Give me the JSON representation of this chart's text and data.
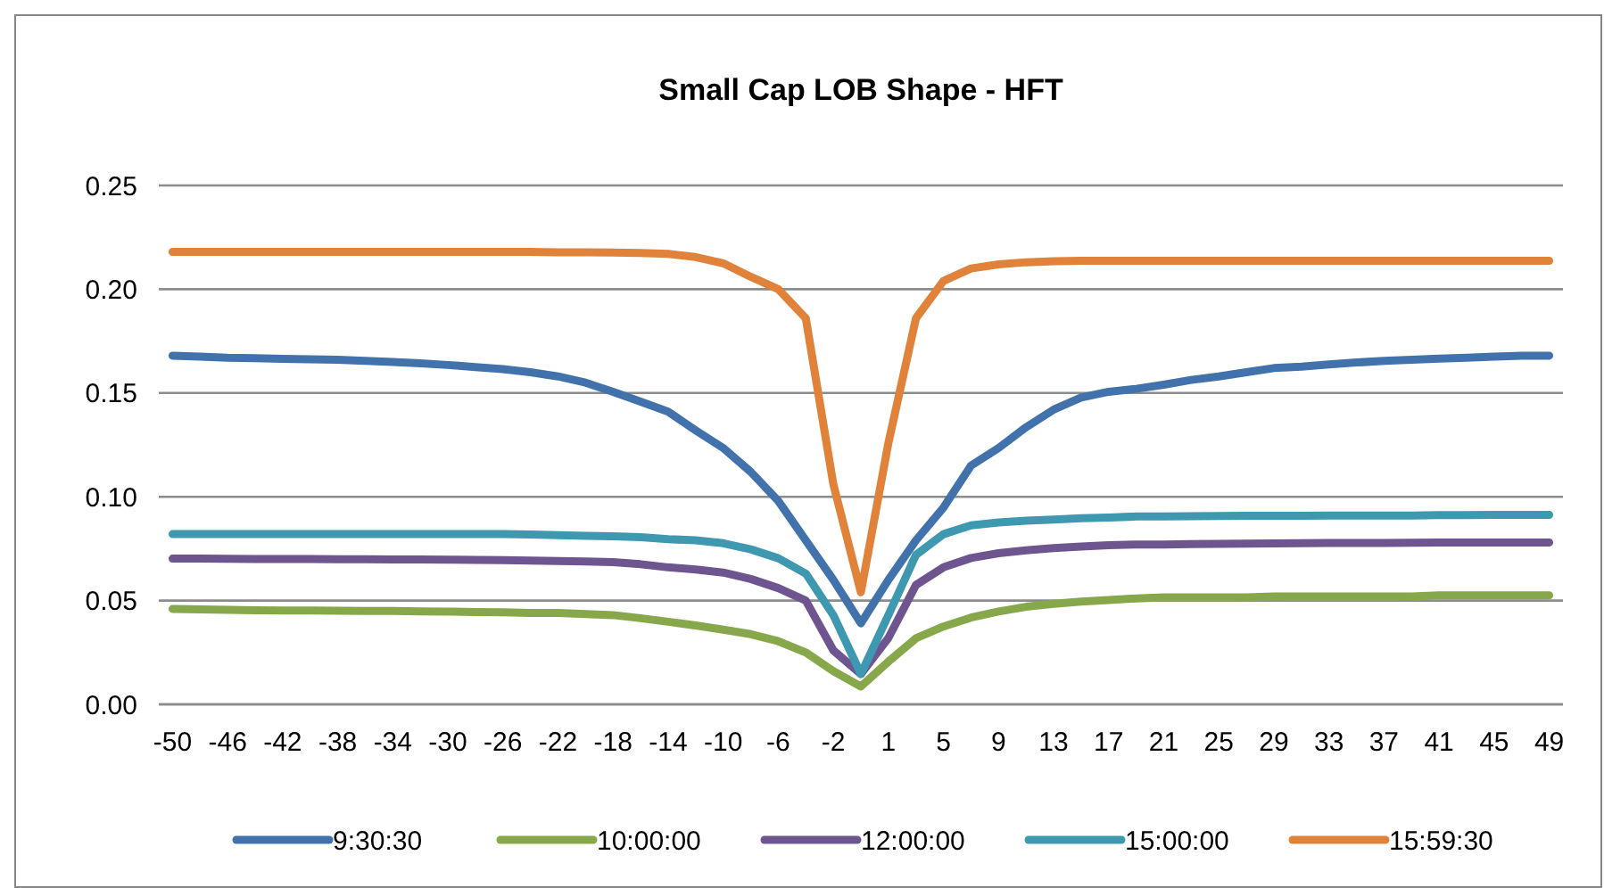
{
  "chart_data": {
    "type": "line",
    "title": "Small Cap LOB Shape - HFT",
    "categories": [
      "-50",
      null,
      "-46",
      null,
      "-42",
      null,
      "-38",
      null,
      "-34",
      null,
      "-30",
      null,
      "-26",
      null,
      "-22",
      null,
      "-18",
      null,
      "-14",
      null,
      "-10",
      null,
      "-6",
      null,
      "-2",
      null,
      "1",
      null,
      "5",
      null,
      "9",
      null,
      "13",
      null,
      "17",
      null,
      "21",
      null,
      "25",
      null,
      "29",
      null,
      "33",
      null,
      "37",
      null,
      "41",
      null,
      "45",
      null,
      "49"
    ],
    "series": [
      {
        "name": "9:30:30",
        "color": "#4272ab",
        "values": [
          0.168,
          0.1675,
          0.167,
          0.1668,
          0.1665,
          0.1662,
          0.166,
          0.1655,
          0.165,
          0.1643,
          0.1635,
          0.1625,
          0.1615,
          0.16,
          0.158,
          0.155,
          0.1506,
          0.1458,
          0.141,
          0.132,
          0.1235,
          0.112,
          0.098,
          0.079,
          0.06,
          0.039,
          0.06,
          0.079,
          0.0948,
          0.115,
          0.1235,
          0.1335,
          0.142,
          0.1478,
          0.1506,
          0.152,
          0.154,
          0.1563,
          0.158,
          0.16,
          0.162,
          0.1627,
          0.1638,
          0.1647,
          0.1655,
          0.166,
          0.1666,
          0.167,
          0.1675,
          0.168,
          0.168
        ]
      },
      {
        "name": "10:00:00",
        "color": "#86a84b",
        "values": [
          0.046,
          0.0458,
          0.0455,
          0.0453,
          0.0452,
          0.0452,
          0.0451,
          0.045,
          0.045,
          0.0448,
          0.0447,
          0.0445,
          0.0443,
          0.044,
          0.044,
          0.0435,
          0.043,
          0.0415,
          0.0398,
          0.038,
          0.036,
          0.0338,
          0.0304,
          0.025,
          0.016,
          0.0086,
          0.0206,
          0.0318,
          0.0375,
          0.0418,
          0.0447,
          0.047,
          0.0484,
          0.0495,
          0.0503,
          0.051,
          0.0515,
          0.0515,
          0.0515,
          0.0515,
          0.052,
          0.052,
          0.052,
          0.052,
          0.052,
          0.052,
          0.0525,
          0.0525,
          0.0525,
          0.0525,
          0.0525
        ]
      },
      {
        "name": "12:00:00",
        "color": "#6e558f",
        "values": [
          0.0702,
          0.0702,
          0.0701,
          0.07,
          0.07,
          0.07,
          0.0699,
          0.0699,
          0.0698,
          0.0698,
          0.0697,
          0.0696,
          0.0695,
          0.0693,
          0.069,
          0.0688,
          0.0685,
          0.0675,
          0.066,
          0.065,
          0.0635,
          0.0604,
          0.056,
          0.05,
          0.026,
          0.0146,
          0.032,
          0.0575,
          0.066,
          0.0705,
          0.0728,
          0.0742,
          0.0753,
          0.076,
          0.0767,
          0.077,
          0.077,
          0.0772,
          0.0773,
          0.0774,
          0.0775,
          0.0776,
          0.0777,
          0.0778,
          0.0778,
          0.0779,
          0.078,
          0.078,
          0.078,
          0.078,
          0.078
        ]
      },
      {
        "name": "15:00:00",
        "color": "#3d98b0",
        "values": [
          0.082,
          0.082,
          0.082,
          0.082,
          0.082,
          0.082,
          0.082,
          0.082,
          0.082,
          0.082,
          0.082,
          0.082,
          0.082,
          0.0818,
          0.0815,
          0.0812,
          0.081,
          0.0805,
          0.0796,
          0.079,
          0.0776,
          0.0747,
          0.0704,
          0.063,
          0.043,
          0.0146,
          0.043,
          0.072,
          0.082,
          0.0862,
          0.0876,
          0.0885,
          0.089,
          0.0897,
          0.09,
          0.0905,
          0.0905,
          0.0906,
          0.0907,
          0.0908,
          0.0908,
          0.0909,
          0.091,
          0.091,
          0.091,
          0.091,
          0.0912,
          0.0912,
          0.0913,
          0.0913,
          0.0913
        ]
      },
      {
        "name": "15:59:30",
        "color": "#e0823a",
        "values": [
          0.218,
          0.218,
          0.218,
          0.218,
          0.218,
          0.218,
          0.218,
          0.218,
          0.218,
          0.218,
          0.218,
          0.218,
          0.218,
          0.218,
          0.2178,
          0.2178,
          0.2177,
          0.2175,
          0.217,
          0.2155,
          0.2125,
          0.206,
          0.2,
          0.186,
          0.106,
          0.054,
          0.126,
          0.186,
          0.204,
          0.21,
          0.212,
          0.213,
          0.2135,
          0.2137,
          0.2137,
          0.2137,
          0.2137,
          0.2137,
          0.2137,
          0.2137,
          0.2137,
          0.2137,
          0.2137,
          0.2137,
          0.2137,
          0.2137,
          0.2137,
          0.2137,
          0.2137,
          0.2137,
          0.2137
        ]
      }
    ],
    "ylim": [
      0,
      0.25
    ],
    "yticks": [
      {
        "value": 0,
        "label": "0.00"
      },
      {
        "value": 0.05,
        "label": "0.05"
      },
      {
        "value": 0.1,
        "label": "0.10"
      },
      {
        "value": 0.15,
        "label": "0.15"
      },
      {
        "value": 0.2,
        "label": "0.20"
      },
      {
        "value": 0.25,
        "label": "0.25"
      }
    ],
    "grid": "y",
    "legend": "bottom",
    "marker": "none",
    "line_style": "solid"
  }
}
